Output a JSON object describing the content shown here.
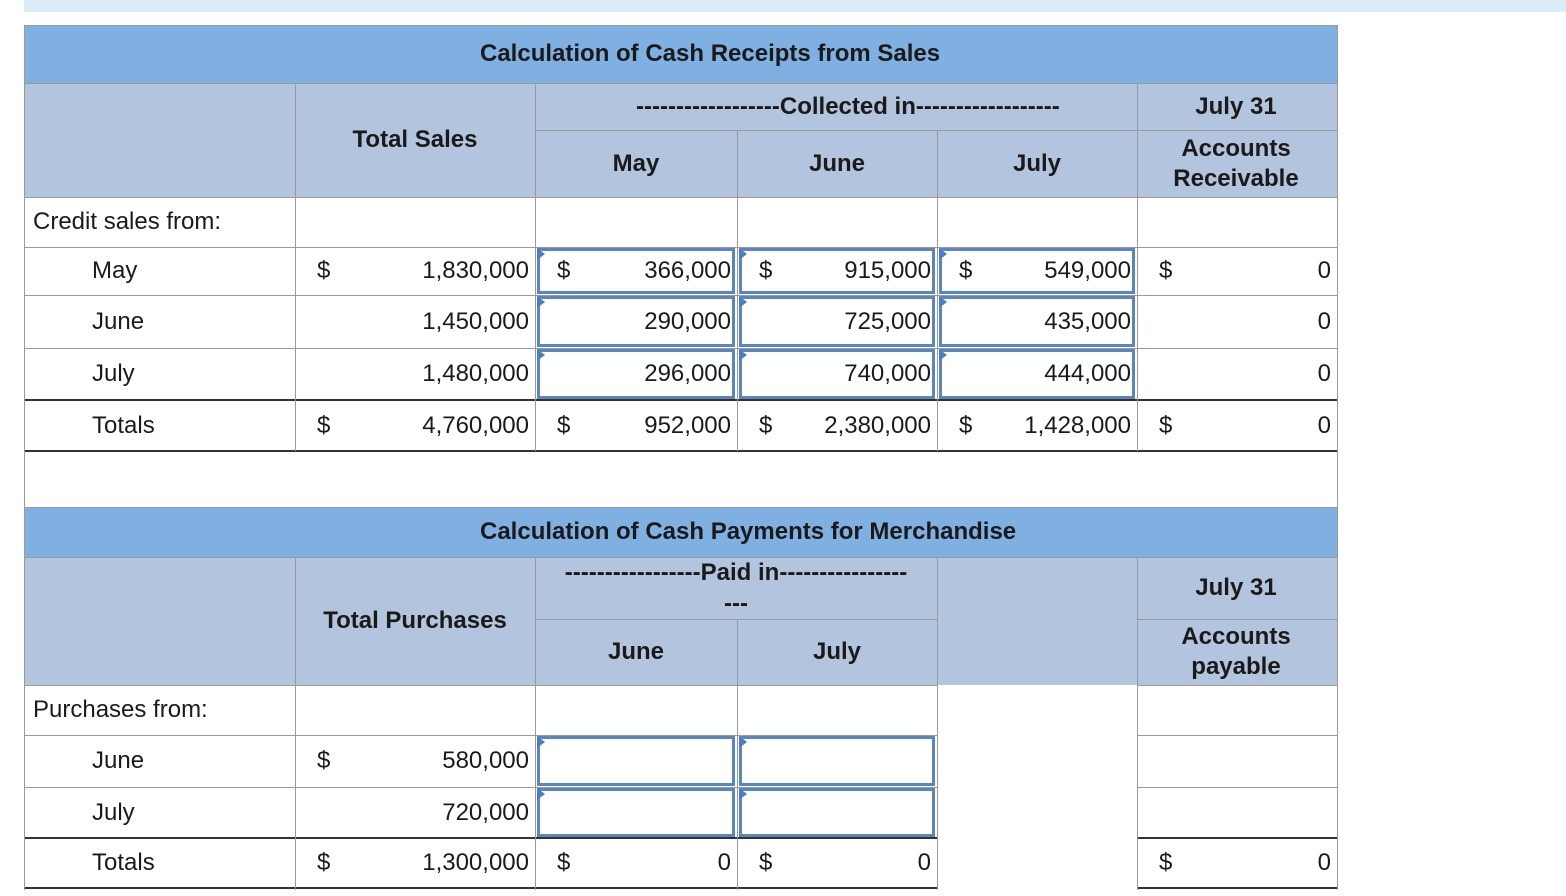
{
  "sales": {
    "title": "Calculation of Cash Receipts from Sales",
    "total_header": "Total Sales",
    "collected_header": "------------------Collected in------------------",
    "month_headers": [
      "May",
      "June",
      "July"
    ],
    "balance_date": "July 31",
    "balance_header": "Accounts Receivable",
    "section_label": "Credit sales from:",
    "rows": [
      {
        "label": "May",
        "cells": [
          {
            "currency": "$",
            "amount": "1,830,000"
          },
          {
            "currency": "$",
            "amount": "366,000"
          },
          {
            "currency": "$",
            "amount": "915,000"
          },
          {
            "currency": "$",
            "amount": "549,000"
          },
          {
            "currency": "$",
            "amount": "0"
          }
        ]
      },
      {
        "label": "June",
        "cells": [
          "1,450,000",
          "290,000",
          "725,000",
          "435,000",
          "0"
        ]
      },
      {
        "label": "July",
        "cells": [
          "1,480,000",
          "296,000",
          "740,000",
          "444,000",
          "0"
        ]
      },
      {
        "label": "Totals",
        "cells": [
          {
            "currency": "$",
            "amount": "4,760,000"
          },
          {
            "currency": "$",
            "amount": "952,000"
          },
          {
            "currency": "$",
            "amount": "2,380,000"
          },
          {
            "currency": "$",
            "amount": "1,428,000"
          },
          {
            "currency": "$",
            "amount": "0"
          }
        ]
      }
    ]
  },
  "purchases": {
    "title": "Calculation of Cash Payments for Merchandise",
    "total_header": "Total Purchases",
    "paid_header": [
      "-----------------Paid in----------------",
      "---"
    ],
    "month_headers": [
      "June",
      "July"
    ],
    "balance_date": "July 31",
    "balance_header": "Accounts payable",
    "section_label": "Purchases from:",
    "rows": [
      {
        "label": "June",
        "cells": [
          {
            "currency": "$",
            "amount": "580,000"
          },
          null,
          null,
          null
        ]
      },
      {
        "label": "July",
        "cells": [
          "720,000",
          null,
          null,
          null
        ]
      },
      {
        "label": "Totals",
        "cells": [
          {
            "currency": "$",
            "amount": "1,300,000"
          },
          {
            "currency": "$",
            "amount": "0"
          },
          {
            "currency": "$",
            "amount": "0"
          },
          {
            "currency": "$",
            "amount": "0"
          }
        ]
      }
    ]
  }
}
